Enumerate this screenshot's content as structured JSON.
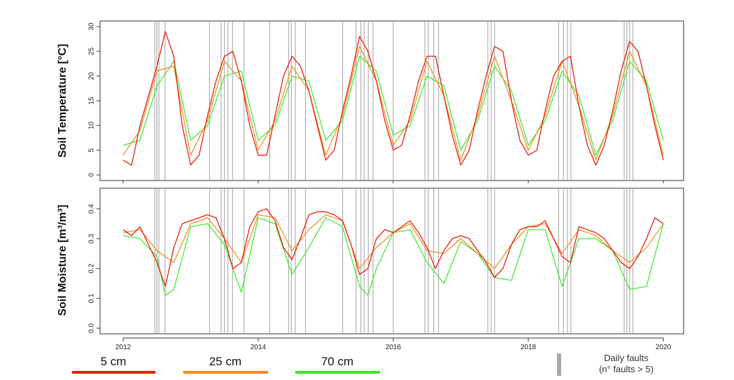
{
  "chart_data": [
    {
      "type": "line",
      "panel": "top",
      "ylabel": "Soil Temperature [°C]",
      "ylim": [
        0,
        30
      ],
      "yticks": [
        0,
        5,
        10,
        15,
        20,
        25,
        30
      ],
      "xlim": [
        2012.0,
        2020.0
      ],
      "xticks": [
        2012,
        2014,
        2016,
        2018,
        2020
      ],
      "grid": false,
      "series": [
        {
          "name": "5 cm",
          "color": "#e8200c",
          "x": [
            2012.0,
            2012.125,
            2012.25,
            2012.375,
            2012.5,
            2012.625,
            2012.75,
            2012.875,
            2013.0,
            2013.125,
            2013.25,
            2013.375,
            2013.5,
            2013.625,
            2013.75,
            2013.875,
            2014.0,
            2014.125,
            2014.25,
            2014.375,
            2014.5,
            2014.625,
            2014.75,
            2014.875,
            2015.0,
            2015.125,
            2015.25,
            2015.375,
            2015.5,
            2015.625,
            2015.75,
            2015.875,
            2016.0,
            2016.125,
            2016.25,
            2016.375,
            2016.5,
            2016.625,
            2016.75,
            2016.875,
            2017.0,
            2017.125,
            2017.25,
            2017.375,
            2017.5,
            2017.625,
            2017.75,
            2017.875,
            2018.0,
            2018.125,
            2018.25,
            2018.375,
            2018.5,
            2018.625,
            2018.75,
            2018.875,
            2019.0,
            2019.125,
            2019.25,
            2019.375,
            2019.5,
            2019.625,
            2019.75,
            2019.875,
            2020.0
          ],
          "values": [
            3,
            2,
            10,
            16,
            22,
            29,
            24,
            10,
            2,
            4,
            12,
            19,
            24,
            25,
            19,
            10,
            4,
            4,
            12,
            20,
            24,
            22,
            17,
            10,
            3,
            5,
            13,
            20,
            28,
            25,
            19,
            11,
            5,
            6,
            12,
            19,
            24,
            24,
            16,
            8,
            2,
            5,
            13,
            20,
            26,
            25,
            15,
            7,
            4,
            5,
            13,
            20,
            23,
            24,
            14,
            6,
            2,
            6,
            13,
            21,
            27,
            25,
            18,
            10,
            3
          ]
        },
        {
          "name": "25 cm",
          "color": "#f08c1a",
          "x": [
            2012.0,
            2012.25,
            2012.5,
            2012.75,
            2013.0,
            2013.25,
            2013.5,
            2013.75,
            2014.0,
            2014.25,
            2014.5,
            2014.75,
            2015.0,
            2015.25,
            2015.5,
            2015.75,
            2016.0,
            2016.25,
            2016.5,
            2016.75,
            2017.0,
            2017.25,
            2017.5,
            2017.75,
            2018.0,
            2018.25,
            2018.5,
            2018.75,
            2019.0,
            2019.25,
            2019.5,
            2019.75,
            2020.0
          ],
          "values": [
            4,
            9,
            21,
            22,
            4,
            11,
            23,
            19,
            5,
            11,
            22,
            17,
            4,
            12,
            26,
            19,
            6,
            11,
            23,
            16,
            3,
            12,
            24,
            15,
            5,
            12,
            23,
            14,
            3,
            12,
            25,
            18,
            4
          ]
        },
        {
          "name": "70 cm",
          "color": "#3ce62a",
          "x": [
            2012.0,
            2012.25,
            2012.5,
            2012.75,
            2013.0,
            2013.25,
            2013.5,
            2013.75,
            2014.0,
            2014.25,
            2014.5,
            2014.75,
            2015.0,
            2015.25,
            2015.5,
            2015.75,
            2016.0,
            2016.25,
            2016.5,
            2016.75,
            2017.0,
            2017.25,
            2017.5,
            2017.75,
            2018.0,
            2018.25,
            2018.5,
            2018.75,
            2019.0,
            2019.25,
            2019.5,
            2019.75,
            2020.0
          ],
          "values": [
            6,
            7,
            18,
            23,
            7,
            10,
            20,
            21,
            7,
            10,
            20,
            19,
            7,
            11,
            24,
            21,
            8,
            10,
            20,
            18,
            5,
            11,
            22,
            17,
            6,
            11,
            21,
            16,
            4,
            11,
            23,
            19,
            7
          ]
        }
      ]
    },
    {
      "type": "line",
      "panel": "bottom",
      "ylabel": "Soil Moisture [m³/m³]",
      "ylim": [
        0.0,
        0.45
      ],
      "yticks": [
        0.0,
        0.1,
        0.2,
        0.3,
        0.4
      ],
      "xlim": [
        2012.0,
        2020.0
      ],
      "xticks": [
        2012,
        2014,
        2016,
        2018,
        2020
      ],
      "grid": false,
      "series": [
        {
          "name": "5 cm",
          "color": "#e8200c",
          "x": [
            2012.0,
            2012.125,
            2012.25,
            2012.375,
            2012.5,
            2012.625,
            2012.75,
            2012.875,
            2013.0,
            2013.125,
            2013.25,
            2013.375,
            2013.5,
            2013.625,
            2013.75,
            2013.875,
            2014.0,
            2014.125,
            2014.25,
            2014.375,
            2014.5,
            2014.625,
            2014.75,
            2014.875,
            2015.0,
            2015.125,
            2015.25,
            2015.375,
            2015.5,
            2015.625,
            2015.75,
            2015.875,
            2016.0,
            2016.125,
            2016.25,
            2016.375,
            2016.5,
            2016.625,
            2016.75,
            2016.875,
            2017.0,
            2017.125,
            2017.25,
            2017.375,
            2017.5,
            2017.625,
            2017.75,
            2017.875,
            2018.0,
            2018.125,
            2018.25,
            2018.375,
            2018.5,
            2018.625,
            2018.75,
            2018.875,
            2019.0,
            2019.125,
            2019.25,
            2019.375,
            2019.5,
            2019.625,
            2019.75,
            2019.875,
            2020.0
          ],
          "values": [
            0.33,
            0.31,
            0.34,
            0.28,
            0.22,
            0.14,
            0.27,
            0.35,
            0.36,
            0.37,
            0.38,
            0.37,
            0.3,
            0.2,
            0.22,
            0.34,
            0.39,
            0.4,
            0.36,
            0.27,
            0.23,
            0.3,
            0.38,
            0.39,
            0.39,
            0.38,
            0.36,
            0.28,
            0.18,
            0.2,
            0.3,
            0.33,
            0.32,
            0.34,
            0.36,
            0.32,
            0.27,
            0.2,
            0.26,
            0.3,
            0.31,
            0.3,
            0.26,
            0.22,
            0.17,
            0.2,
            0.28,
            0.33,
            0.34,
            0.34,
            0.36,
            0.3,
            0.24,
            0.22,
            0.34,
            0.33,
            0.32,
            0.3,
            0.26,
            0.22,
            0.2,
            0.24,
            0.3,
            0.37,
            0.35
          ]
        },
        {
          "name": "25 cm",
          "color": "#f08c1a",
          "x": [
            2012.0,
            2012.25,
            2012.5,
            2012.75,
            2013.0,
            2013.25,
            2013.5,
            2013.75,
            2014.0,
            2014.25,
            2014.5,
            2014.75,
            2015.0,
            2015.25,
            2015.5,
            2015.75,
            2016.0,
            2016.25,
            2016.5,
            2016.75,
            2017.0,
            2017.25,
            2017.5,
            2017.75,
            2018.0,
            2018.25,
            2018.5,
            2018.75,
            2019.0,
            2019.25,
            2019.5,
            2019.75,
            2020.0
          ],
          "values": [
            0.32,
            0.33,
            0.26,
            0.22,
            0.35,
            0.37,
            0.3,
            0.22,
            0.38,
            0.37,
            0.26,
            0.33,
            0.38,
            0.36,
            0.2,
            0.27,
            0.32,
            0.35,
            0.26,
            0.25,
            0.3,
            0.25,
            0.2,
            0.28,
            0.34,
            0.35,
            0.25,
            0.33,
            0.31,
            0.26,
            0.22,
            0.27,
            0.35
          ]
        },
        {
          "name": "70 cm",
          "color": "#3ce62a",
          "x": [
            2012.0,
            2012.25,
            2012.5,
            2012.625,
            2012.75,
            2013.0,
            2013.25,
            2013.5,
            2013.75,
            2014.0,
            2014.25,
            2014.5,
            2014.75,
            2015.0,
            2015.25,
            2015.5,
            2015.625,
            2015.75,
            2016.0,
            2016.25,
            2016.5,
            2016.75,
            2017.0,
            2017.25,
            2017.5,
            2017.75,
            2018.0,
            2018.25,
            2018.5,
            2018.75,
            2019.0,
            2019.25,
            2019.5,
            2019.75,
            2020.0
          ],
          "values": [
            0.31,
            0.3,
            0.24,
            0.11,
            0.13,
            0.34,
            0.35,
            0.28,
            0.12,
            0.37,
            0.35,
            0.18,
            0.27,
            0.37,
            0.34,
            0.14,
            0.11,
            0.2,
            0.32,
            0.33,
            0.22,
            0.15,
            0.29,
            0.25,
            0.17,
            0.16,
            0.33,
            0.33,
            0.14,
            0.3,
            0.3,
            0.26,
            0.13,
            0.14,
            0.35
          ]
        }
      ]
    }
  ],
  "faults": {
    "color": "#b0b0b0",
    "x": [
      2012.47,
      2012.5,
      2012.53,
      2012.62,
      2013.28,
      2013.45,
      2013.5,
      2013.55,
      2013.62,
      2013.79,
      2014.17,
      2014.45,
      2014.49,
      2014.55,
      2014.7,
      2015.25,
      2015.45,
      2015.52,
      2015.57,
      2015.63,
      2015.7,
      2016.0,
      2016.47,
      2016.52,
      2016.6,
      2016.67,
      2017.4,
      2017.45,
      2017.5,
      2018.45,
      2018.52,
      2018.58,
      2018.63,
      2019.42,
      2019.46,
      2019.5,
      2019.55
    ]
  },
  "legend": {
    "items": [
      {
        "label": "5 cm",
        "color": "#e8200c"
      },
      {
        "label": "25 cm",
        "color": "#f08c1a"
      },
      {
        "label": "70 cm",
        "color": "#3ce62a"
      }
    ],
    "faults_label_line1": "Daily faults",
    "faults_label_line2": "(n° faults > 5)"
  }
}
